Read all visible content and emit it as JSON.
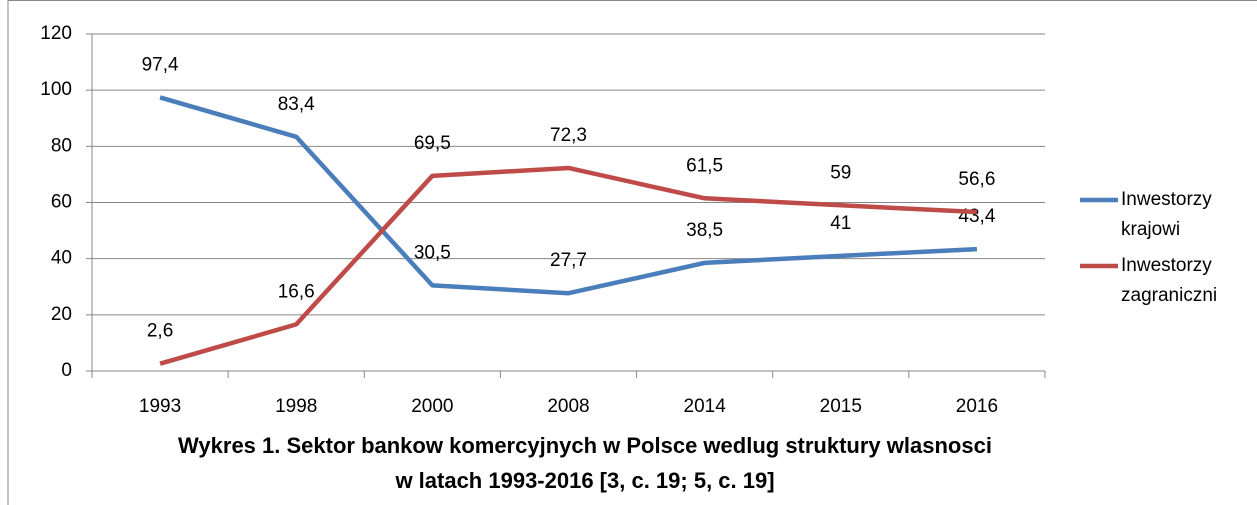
{
  "chart_data": {
    "type": "line",
    "title": "Wykres 1. Sektor bankow komercyjnych w Polsce wedlug struktury wlasnosci w latach 1993-2016 [3, c. 19; 5, c. 19]",
    "categories": [
      "1993",
      "1998",
      "2000",
      "2008",
      "2014",
      "2015",
      "2016"
    ],
    "series": [
      {
        "name": "Inwestorzy krajowi",
        "color": "#4a7ebb",
        "values": [
          97.4,
          83.4,
          30.5,
          27.7,
          38.5,
          41,
          43.4
        ],
        "value_labels": [
          "97,4",
          "83,4",
          "30,5",
          "27,7",
          "38,5",
          "41",
          "43,4"
        ]
      },
      {
        "name": "Inwestorzy zagraniczni",
        "color": "#be4b48",
        "values": [
          2.6,
          16.6,
          69.5,
          72.3,
          61.5,
          59,
          56.6
        ],
        "value_labels": [
          "2,6",
          "16,6",
          "69,5",
          "72,3",
          "61,5",
          "59",
          "56,6"
        ]
      }
    ],
    "ylim": [
      0,
      120
    ],
    "yticks": [
      0,
      20,
      40,
      60,
      80,
      100,
      120
    ],
    "grid": true,
    "legend": "right"
  }
}
